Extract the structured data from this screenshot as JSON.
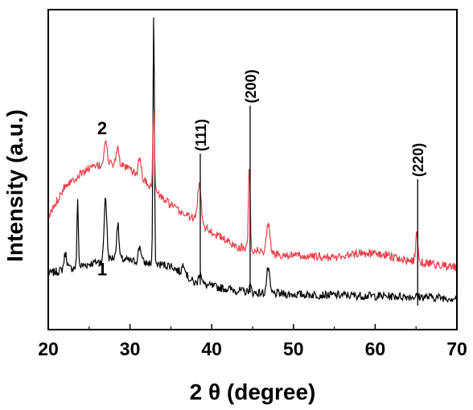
{
  "chart_data": {
    "type": "line",
    "xlabel": "2 θ (degree)",
    "ylabel": "Intensity (a.u.)",
    "xlim": [
      20,
      70
    ],
    "ylim": [
      0,
      100
    ],
    "x_ticks": [
      "20",
      "30",
      "40",
      "50",
      "60",
      "70"
    ],
    "y_ticks_labeled": false,
    "grid": false,
    "legend": "none",
    "series": [
      {
        "name": "1",
        "color": "#000000",
        "baseline": [
          [
            20,
            17.5
          ],
          [
            25,
            20.5
          ],
          [
            28,
            22.5
          ],
          [
            30,
            21.5
          ],
          [
            33,
            20.5
          ],
          [
            35,
            20.0
          ],
          [
            38,
            14.5
          ],
          [
            40,
            13.5
          ],
          [
            45,
            11.5
          ],
          [
            50,
            11.0
          ],
          [
            55,
            10.8
          ],
          [
            60,
            10.5
          ],
          [
            65,
            10.3
          ],
          [
            70,
            9.8
          ]
        ],
        "peaks": [
          [
            22.1,
            5,
            0.25
          ],
          [
            23.6,
            21,
            0.12
          ],
          [
            27.0,
            20,
            0.22
          ],
          [
            28.5,
            11,
            0.2
          ],
          [
            31.2,
            5,
            0.25
          ],
          [
            32.9,
            78,
            0.12
          ],
          [
            36.6,
            3.5,
            0.3
          ],
          [
            38.6,
            4,
            0.25
          ],
          [
            46.9,
            8,
            0.25
          ],
          [
            44.7,
            2,
            0.2
          ]
        ]
      },
      {
        "name": "2",
        "color": "#e8404a",
        "baseline": [
          [
            20,
            35.0
          ],
          [
            22,
            45.0
          ],
          [
            25,
            50.5
          ],
          [
            28,
            52.0
          ],
          [
            30,
            50.0
          ],
          [
            32,
            46.0
          ],
          [
            34,
            41.0
          ],
          [
            36,
            37.0
          ],
          [
            38,
            34.5
          ],
          [
            40,
            30.5
          ],
          [
            43,
            26.0
          ],
          [
            45,
            25.0
          ],
          [
            48,
            23.5
          ],
          [
            52,
            22.8
          ],
          [
            55,
            22.5
          ],
          [
            58,
            24.0
          ],
          [
            61,
            23.5
          ],
          [
            64,
            21.5
          ],
          [
            67,
            20.5
          ],
          [
            70,
            19.5
          ]
        ],
        "peaks": [
          [
            27.0,
            8,
            0.25
          ],
          [
            28.5,
            5,
            0.25
          ],
          [
            31.2,
            6,
            0.25
          ],
          [
            32.9,
            25,
            0.15
          ],
          [
            38.5,
            12,
            0.3
          ],
          [
            44.6,
            27,
            0.15
          ],
          [
            46.9,
            9,
            0.3
          ],
          [
            65.1,
            9,
            0.2
          ]
        ]
      }
    ],
    "reference_lines": [
      {
        "label": "(111)",
        "x": 38.6,
        "top": 55.0,
        "bottom": 14.0
      },
      {
        "label": "(200)",
        "x": 44.7,
        "top": 70.0,
        "bottom": 11.5
      },
      {
        "label": "(220)",
        "x": 65.2,
        "top": 47.0,
        "bottom": 7.5
      }
    ],
    "annotations": [
      {
        "text": "2",
        "x": 26.6,
        "y": 61
      },
      {
        "text": "1",
        "x": 26.6,
        "y": 17
      }
    ]
  }
}
